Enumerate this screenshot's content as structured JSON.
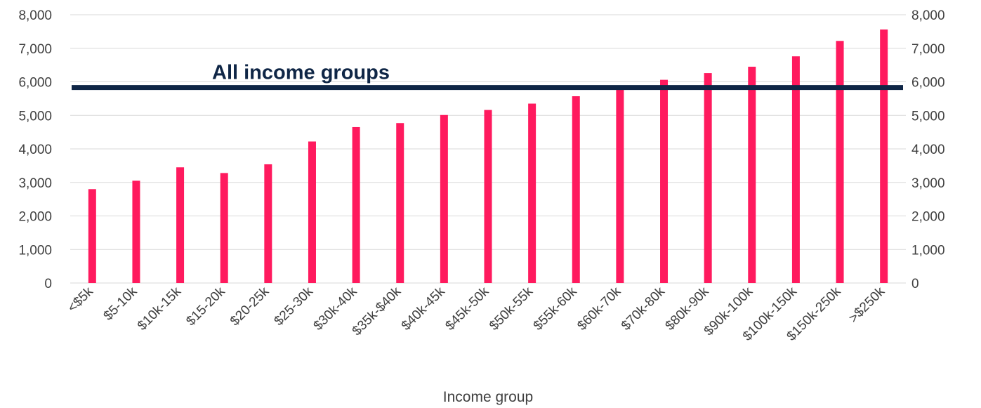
{
  "chart_data": {
    "type": "bar",
    "title": "",
    "xlabel": "Income group",
    "ylabel": "",
    "ylim": [
      0,
      8000
    ],
    "yticks": [
      0,
      1000,
      2000,
      3000,
      4000,
      5000,
      6000,
      7000,
      8000
    ],
    "ytick_labels": [
      "0",
      "1,000",
      "2,000",
      "3,000",
      "4,000",
      "5,000",
      "6,000",
      "7,000",
      "8,000"
    ],
    "secondary_axis": true,
    "grid": true,
    "legend": "none",
    "categories": [
      "<$5k",
      "$5-10k",
      "$10k-15k",
      "$15-20k",
      "$20-25k",
      "$25-30k",
      "$30k-40k",
      "$35k-$40k",
      "$40k-45k",
      "$45k-50k",
      "$50k-55k",
      "$55k-60k",
      "$60k-70k",
      "$70k-80k",
      "$80k-90k",
      "$90k-100k",
      "$100k-150k",
      "$150k-250k",
      ">$250k"
    ],
    "values": [
      2800,
      3050,
      3450,
      3280,
      3540,
      4220,
      4650,
      4770,
      5010,
      5160,
      5350,
      5570,
      5810,
      6060,
      6260,
      6450,
      6760,
      7220,
      7560
    ],
    "reference_line": {
      "label": "All income groups",
      "value": 5830
    },
    "colors": {
      "bar": "#ff1a5e",
      "reference_line": "#0f2646",
      "grid": "#d9d9d9",
      "text": "#404040"
    }
  }
}
